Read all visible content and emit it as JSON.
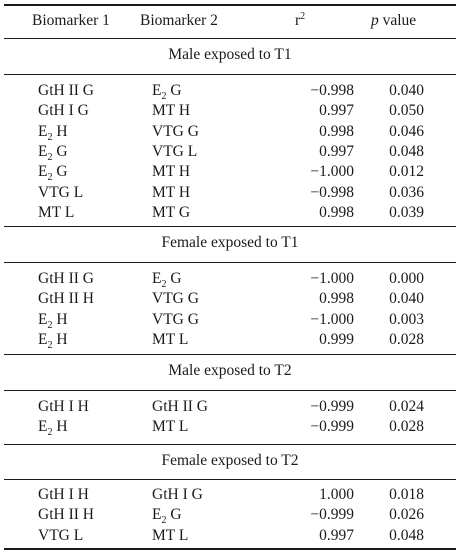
{
  "header": {
    "col1": "Biomarker 1",
    "col2": "Biomarker 2",
    "col3_base": "r",
    "col3_sup": "2",
    "col4_italic": "p",
    "col4_rest": "value"
  },
  "sections": [
    {
      "title": "Male exposed to T1",
      "rows": [
        {
          "b1": "GtH II G",
          "b2_pre": "E",
          "b2_sub": "2",
          "b2_post": " G",
          "r2": "−0.998",
          "p": "0.040"
        },
        {
          "b1": "GtH I G",
          "b2": "MT H",
          "r2": "0.997",
          "p": "0.050"
        },
        {
          "b1_pre": "E",
          "b1_sub": "2",
          "b1_post": " H",
          "b2": "VTG G",
          "r2": "0.998",
          "p": "0.046"
        },
        {
          "b1_pre": "E",
          "b1_sub": "2",
          "b1_post": " G",
          "b2": "VTG L",
          "r2": "0.997",
          "p": "0.048"
        },
        {
          "b1_pre": "E",
          "b1_sub": "2",
          "b1_post": " G",
          "b2": "MT H",
          "r2": "−1.000",
          "p": "0.012"
        },
        {
          "b1": "VTG L",
          "b2": "MT H",
          "r2": "−0.998",
          "p": "0.036"
        },
        {
          "b1": "MT L",
          "b2": "MT G",
          "r2": "0.998",
          "p": "0.039"
        }
      ]
    },
    {
      "title": "Female exposed to T1",
      "rows": [
        {
          "b1": "GtH II G",
          "b2_pre": "E",
          "b2_sub": "2",
          "b2_post": " G",
          "r2": "−1.000",
          "p": "0.000"
        },
        {
          "b1": "GtH II H",
          "b2": "VTG G",
          "r2": "0.998",
          "p": "0.040"
        },
        {
          "b1_pre": "E",
          "b1_sub": "2",
          "b1_post": " H",
          "b2": "VTG G",
          "r2": "−1.000",
          "p": "0.003"
        },
        {
          "b1_pre": "E",
          "b1_sub": "2",
          "b1_post": " H",
          "b2": "MT L",
          "r2": "0.999",
          "p": "0.028"
        }
      ]
    },
    {
      "title": "Male exposed to T2",
      "rows": [
        {
          "b1": "GtH I H",
          "b2": "GtH II G",
          "r2": "−0.999",
          "p": "0.024"
        },
        {
          "b1_pre": "E",
          "b1_sub": "2",
          "b1_post": " H",
          "b2": "MT L",
          "r2": "−0.999",
          "p": "0.028"
        }
      ]
    },
    {
      "title": "Female exposed to T2",
      "rows": [
        {
          "b1": "GtH I H",
          "b2": "GtH I G",
          "r2": "1.000",
          "p": "0.018"
        },
        {
          "b1": "GtH II H",
          "b2_pre": "E",
          "b2_sub": "2",
          "b2_post": " G",
          "r2": "−0.999",
          "p": "0.026"
        },
        {
          "b1": "VTG L",
          "b2": "MT L",
          "r2": "0.997",
          "p": "0.048"
        }
      ]
    }
  ]
}
